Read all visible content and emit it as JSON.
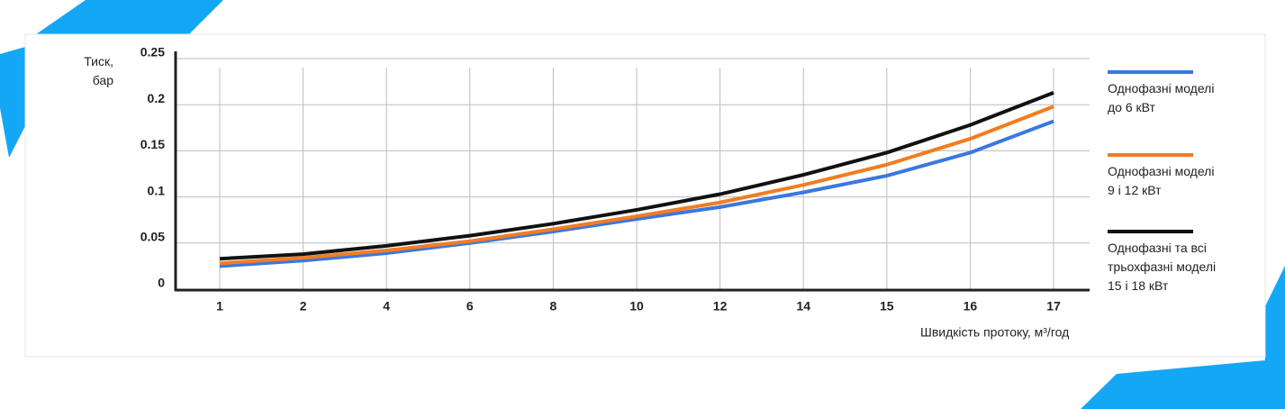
{
  "chart_data": {
    "type": "line",
    "y_label": "Тиск,\nбар",
    "x_label": "Швидкість протоку, м³/год",
    "categories": [
      "1",
      "2",
      "4",
      "6",
      "8",
      "10",
      "12",
      "14",
      "15",
      "16",
      "17"
    ],
    "ylim": [
      0,
      0.25
    ],
    "yticks": [
      0,
      0.05,
      0.1,
      0.15,
      0.2,
      0.25
    ],
    "grid": true,
    "legend": "right",
    "series": [
      {
        "name": "Однофазні моделі\nдо 6 кВт",
        "color": "#3a78e0",
        "values": [
          0.025,
          0.031,
          0.039,
          0.05,
          0.0625,
          0.076,
          0.089,
          0.105,
          0.123,
          0.148,
          0.182
        ]
      },
      {
        "name": "Однофазні моделі\n9 і 12 кВт",
        "color": "#f47c20",
        "values": [
          0.028,
          0.034,
          0.042,
          0.052,
          0.065,
          0.079,
          0.094,
          0.113,
          0.135,
          0.163,
          0.198
        ]
      },
      {
        "name": "Однофазні та всі\nтрьохфазні моделі\n15 і 18 кВт",
        "color": "#111111",
        "values": [
          0.033,
          0.038,
          0.047,
          0.058,
          0.071,
          0.086,
          0.103,
          0.124,
          0.148,
          0.178,
          0.213
        ]
      }
    ]
  }
}
